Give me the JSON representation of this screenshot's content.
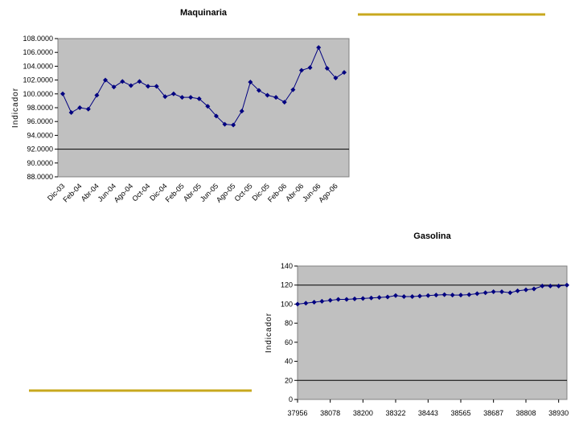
{
  "chart_data": [
    {
      "type": "line",
      "title": "Maquinaria",
      "y_label": "Indicador",
      "categories": [
        "Dic-03",
        null,
        "Feb-04",
        null,
        "Abr-04",
        null,
        "Jun-04",
        null,
        "Ago-04",
        null,
        "Oct-04",
        null,
        "Dic-04",
        null,
        "Feb-05",
        null,
        "Abr-05",
        null,
        "Jun-05",
        null,
        "Ago-05",
        null,
        "Oct-05",
        null,
        "Dic-05",
        null,
        "Feb-06",
        null,
        "Abr-06",
        null,
        "Jun-06",
        null,
        "Ago-06",
        null
      ],
      "series": [
        {
          "name": "Maquinaria",
          "color": "#000080",
          "values": [
            100.0,
            97.3,
            98.0,
            97.8,
            99.8,
            102.0,
            101.0,
            101.8,
            101.2,
            101.8,
            101.1,
            101.1,
            99.6,
            100.0,
            99.5,
            99.5,
            99.3,
            98.2,
            96.8,
            95.6,
            95.5,
            97.5,
            101.7,
            100.5,
            99.8,
            99.5,
            98.8,
            100.6,
            103.4,
            103.8,
            106.7,
            103.7,
            102.3,
            103.1
          ]
        }
      ],
      "ylim": [
        88,
        108
      ],
      "yticks": [
        {
          "value": 88,
          "label": "88.0000"
        },
        {
          "value": 90,
          "label": "90.0000"
        },
        {
          "value": 92,
          "label": "92.0000"
        },
        {
          "value": 94,
          "label": "94.0000"
        },
        {
          "value": 96,
          "label": "96.0000"
        },
        {
          "value": 98,
          "label": "98.0000"
        },
        {
          "value": 100,
          "label": "100.0000"
        },
        {
          "value": 102,
          "label": "102.0000"
        },
        {
          "value": 104,
          "label": "104.0000"
        },
        {
          "value": 106,
          "label": "106.0000"
        },
        {
          "value": 108,
          "label": "108.0000"
        }
      ],
      "grid_at": [
        92
      ],
      "plot_color": "#c0c0c0"
    },
    {
      "type": "line",
      "title": "Gasolina",
      "y_label": "Indicador",
      "x": [
        37956,
        37987,
        38018,
        38047,
        38078,
        38108,
        38139,
        38169,
        38200,
        38231,
        38261,
        38292,
        38322,
        38353,
        38384,
        38412,
        38443,
        38473,
        38504,
        38534,
        38565,
        38596,
        38626,
        38657,
        38687,
        38718,
        38749,
        38777,
        38808,
        38838,
        38869,
        38899,
        38930,
        38961
      ],
      "series": [
        {
          "name": "Gasolina",
          "color": "#000080",
          "values": [
            100,
            101,
            102,
            103,
            104,
            105,
            105,
            105.5,
            106,
            106.5,
            107,
            107.5,
            109,
            108,
            108,
            108.5,
            109,
            109.5,
            110,
            109.5,
            109.5,
            110,
            111,
            112,
            113,
            113,
            112,
            114,
            115,
            116,
            119,
            119,
            119,
            120
          ]
        }
      ],
      "xlim": [
        37956,
        38961
      ],
      "xticks": [
        37956,
        38078,
        38200,
        38322,
        38443,
        38565,
        38687,
        38808,
        38930
      ],
      "ylim": [
        0,
        140
      ],
      "yticks": [
        0,
        20,
        40,
        60,
        80,
        100,
        120,
        140
      ],
      "grid_at": [
        20,
        120
      ],
      "plot_color": "#c0c0c0"
    }
  ]
}
